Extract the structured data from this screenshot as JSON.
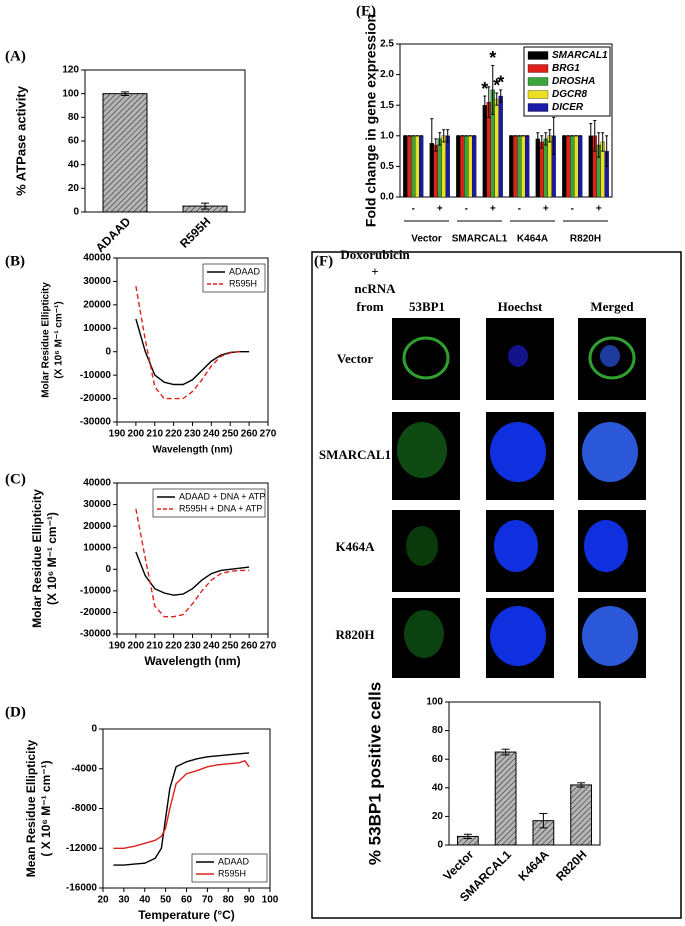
{
  "chart_data": [
    {
      "type": "bar",
      "label": "(A)",
      "ylabel": [
        "% ATPase activity"
      ],
      "categories": [
        "ADAAD",
        "R595H"
      ],
      "values": [
        100,
        5
      ],
      "errors": [
        1.5,
        2.5
      ],
      "color": "#b5b5b5",
      "ylim": [
        0,
        120
      ],
      "yticks": [
        0,
        20,
        40,
        60,
        80,
        100,
        120
      ]
    },
    {
      "type": "line",
      "label": "(B)",
      "ylabel": [
        "Molar Residue Ellipticity",
        "(X 10⁶ M⁻¹ cm⁻¹)"
      ],
      "xlabel": "Wavelength (nm)",
      "x": [
        200,
        205,
        210,
        215,
        220,
        225,
        230,
        235,
        240,
        245,
        250,
        255,
        260
      ],
      "series": [
        {
          "name": "ADAAD",
          "color": "#000000",
          "dashed": false,
          "values": [
            14000,
            0,
            -10000,
            -13000,
            -14000,
            -14000,
            -12000,
            -8000,
            -4000,
            -1500,
            -300,
            0,
            0
          ]
        },
        {
          "name": "R595H",
          "color": "#e0201b",
          "dashed": true,
          "values": [
            28000,
            5000,
            -15000,
            -20000,
            -20000,
            -20000,
            -17000,
            -12000,
            -6000,
            -2000,
            -500,
            0,
            null
          ]
        }
      ],
      "xlim": [
        190,
        270
      ],
      "xticks": [
        190,
        200,
        210,
        220,
        230,
        240,
        250,
        260,
        270
      ],
      "ylim": [
        -30000,
        40000
      ],
      "yticks": [
        -30000,
        -20000,
        -10000,
        0,
        10000,
        20000,
        30000,
        40000
      ],
      "legend": "upper right"
    },
    {
      "type": "line",
      "label": "(C)",
      "ylabel": [
        "Molar Residue Ellipticity",
        "(X 10⁶ M⁻¹ cm⁻¹)"
      ],
      "xlabel": "Wavelength (nm)",
      "x": [
        200,
        205,
        210,
        215,
        220,
        225,
        230,
        235,
        240,
        245,
        250,
        255,
        260
      ],
      "series": [
        {
          "name": "ADAAD + DNA + ATP",
          "color": "#000000",
          "dashed": false,
          "values": [
            8000,
            -3000,
            -9000,
            -11000,
            -12000,
            -11500,
            -9000,
            -5000,
            -2000,
            -500,
            0,
            500,
            1000
          ]
        },
        {
          "name": "R595H + DNA + ATP",
          "color": "#e0201b",
          "dashed": true,
          "values": [
            28000,
            5000,
            -17000,
            -22000,
            -22000,
            -21000,
            -16000,
            -10000,
            -5000,
            -2000,
            -1000,
            -500,
            -500
          ]
        }
      ],
      "xlim": [
        190,
        270
      ],
      "xticks": [
        190,
        200,
        210,
        220,
        230,
        240,
        250,
        260,
        270
      ],
      "ylim": [
        -30000,
        40000
      ],
      "yticks": [
        -30000,
        -20000,
        -10000,
        0,
        10000,
        20000,
        30000,
        40000
      ],
      "legend": "upper right"
    },
    {
      "type": "line",
      "label": "(D)",
      "ylabel": [
        "Mean Residue Ellipticity",
        "( X 10⁶ M⁻¹ cm⁻¹)"
      ],
      "xlabel": "Temperature (°C)",
      "x": [
        25,
        30,
        35,
        40,
        45,
        48,
        50,
        52,
        55,
        60,
        65,
        70,
        75,
        80,
        85,
        88,
        90
      ],
      "series": [
        {
          "name": "ADAAD",
          "color": "#000000",
          "dashed": false,
          "values": [
            -13700,
            -13700,
            -13600,
            -13500,
            -13000,
            -12000,
            -9000,
            -6000,
            -3800,
            -3300,
            -3000,
            -2800,
            -2700,
            -2600,
            -2500,
            -2450,
            -2400
          ]
        },
        {
          "name": "R595H",
          "color": "#e0201b",
          "dashed": false,
          "values": [
            -12000,
            -12000,
            -11800,
            -11500,
            -11200,
            -10800,
            -10000,
            -8000,
            -5500,
            -4500,
            -4200,
            -3800,
            -3600,
            -3500,
            -3400,
            -3200,
            -3800
          ]
        }
      ],
      "xlim": [
        20,
        100
      ],
      "xticks": [
        20,
        30,
        40,
        50,
        60,
        70,
        80,
        90,
        100
      ],
      "ylim": [
        -16000,
        0
      ],
      "yticks": [
        -16000,
        -12000,
        -8000,
        -4000,
        0
      ],
      "legend": "lower right"
    },
    {
      "type": "bar",
      "label": "(E)",
      "ylabel": [
        "Fold change in gene expression"
      ],
      "categories": [
        "-",
        "+",
        "-",
        "+",
        "-",
        "+",
        "-",
        "+"
      ],
      "groups": [
        "Vector",
        "SMARCAL1",
        "K464A",
        "R820H"
      ],
      "series": [
        {
          "name": "SMARCAL1",
          "color": "#000000",
          "values": [
            1,
            0.88,
            1,
            1.5,
            1,
            0.95,
            1,
            1.0
          ],
          "errors": [
            0,
            0.4,
            0,
            0.15,
            0,
            0.1,
            0,
            0.2
          ]
        },
        {
          "name": "BRG1",
          "color": "#e0201b",
          "values": [
            1,
            0.85,
            1,
            1.55,
            1,
            0.9,
            1,
            1.0
          ],
          "errors": [
            0,
            0.1,
            0,
            0.25,
            0,
            0.1,
            0,
            0.25
          ]
        },
        {
          "name": "DROSHA",
          "color": "#3aa53a",
          "values": [
            1,
            0.95,
            1,
            1.75,
            1,
            0.95,
            1,
            0.85
          ],
          "errors": [
            0,
            0.1,
            0,
            0.4,
            0,
            0.1,
            0,
            0.2
          ]
        },
        {
          "name": "DGCR8",
          "color": "#e8e020",
          "values": [
            1,
            1.0,
            1,
            1.6,
            1,
            1.0,
            1,
            0.9
          ],
          "errors": [
            0,
            0.1,
            0,
            0.1,
            0,
            0.1,
            0,
            0.15
          ]
        },
        {
          "name": "DICER",
          "color": "#1a1aa8",
          "values": [
            1,
            1.0,
            1,
            1.65,
            1,
            1.0,
            1,
            0.75
          ],
          "errors": [
            0,
            0.1,
            0,
            0.1,
            0,
            0.3,
            0,
            0.25
          ]
        }
      ],
      "annotations": [
        {
          "text": "*",
          "series": 0,
          "category": 3
        },
        {
          "text": "*",
          "series": 2,
          "category": 3
        },
        {
          "text": "*",
          "series": 3,
          "category": 3
        },
        {
          "text": "*",
          "series": 4,
          "category": 3
        }
      ],
      "ylim": [
        0,
        2.5
      ],
      "yticks": [
        {
          "value": 0,
          "label": "0.0"
        },
        0.5,
        {
          "value": 1,
          "label": "1.0"
        },
        1.5,
        {
          "value": 2,
          "label": "2.0"
        },
        2.5
      ],
      "legend": "upper right"
    },
    {
      "type": "bar",
      "label": "(F)",
      "ylabel": [
        "% 53BP1 positive cells"
      ],
      "categories": [
        "Vector",
        "SMARCAL1",
        "K464A",
        "R820H"
      ],
      "values": [
        6,
        65,
        17,
        42
      ],
      "errors": [
        1.5,
        2,
        5,
        1.5
      ],
      "color": "#b5b5b5",
      "ylim": [
        0,
        100
      ],
      "yticks": [
        0,
        20,
        40,
        60,
        80,
        100
      ]
    }
  ],
  "microscopy": {
    "treatment": [
      "Doxorubicin",
      "+",
      "ncRNA",
      "from"
    ],
    "columns": [
      "53BP1",
      "Hoechst",
      "Merged"
    ],
    "rows": [
      "Vector",
      "SMARCAL1",
      "K464A",
      "R820H"
    ]
  }
}
